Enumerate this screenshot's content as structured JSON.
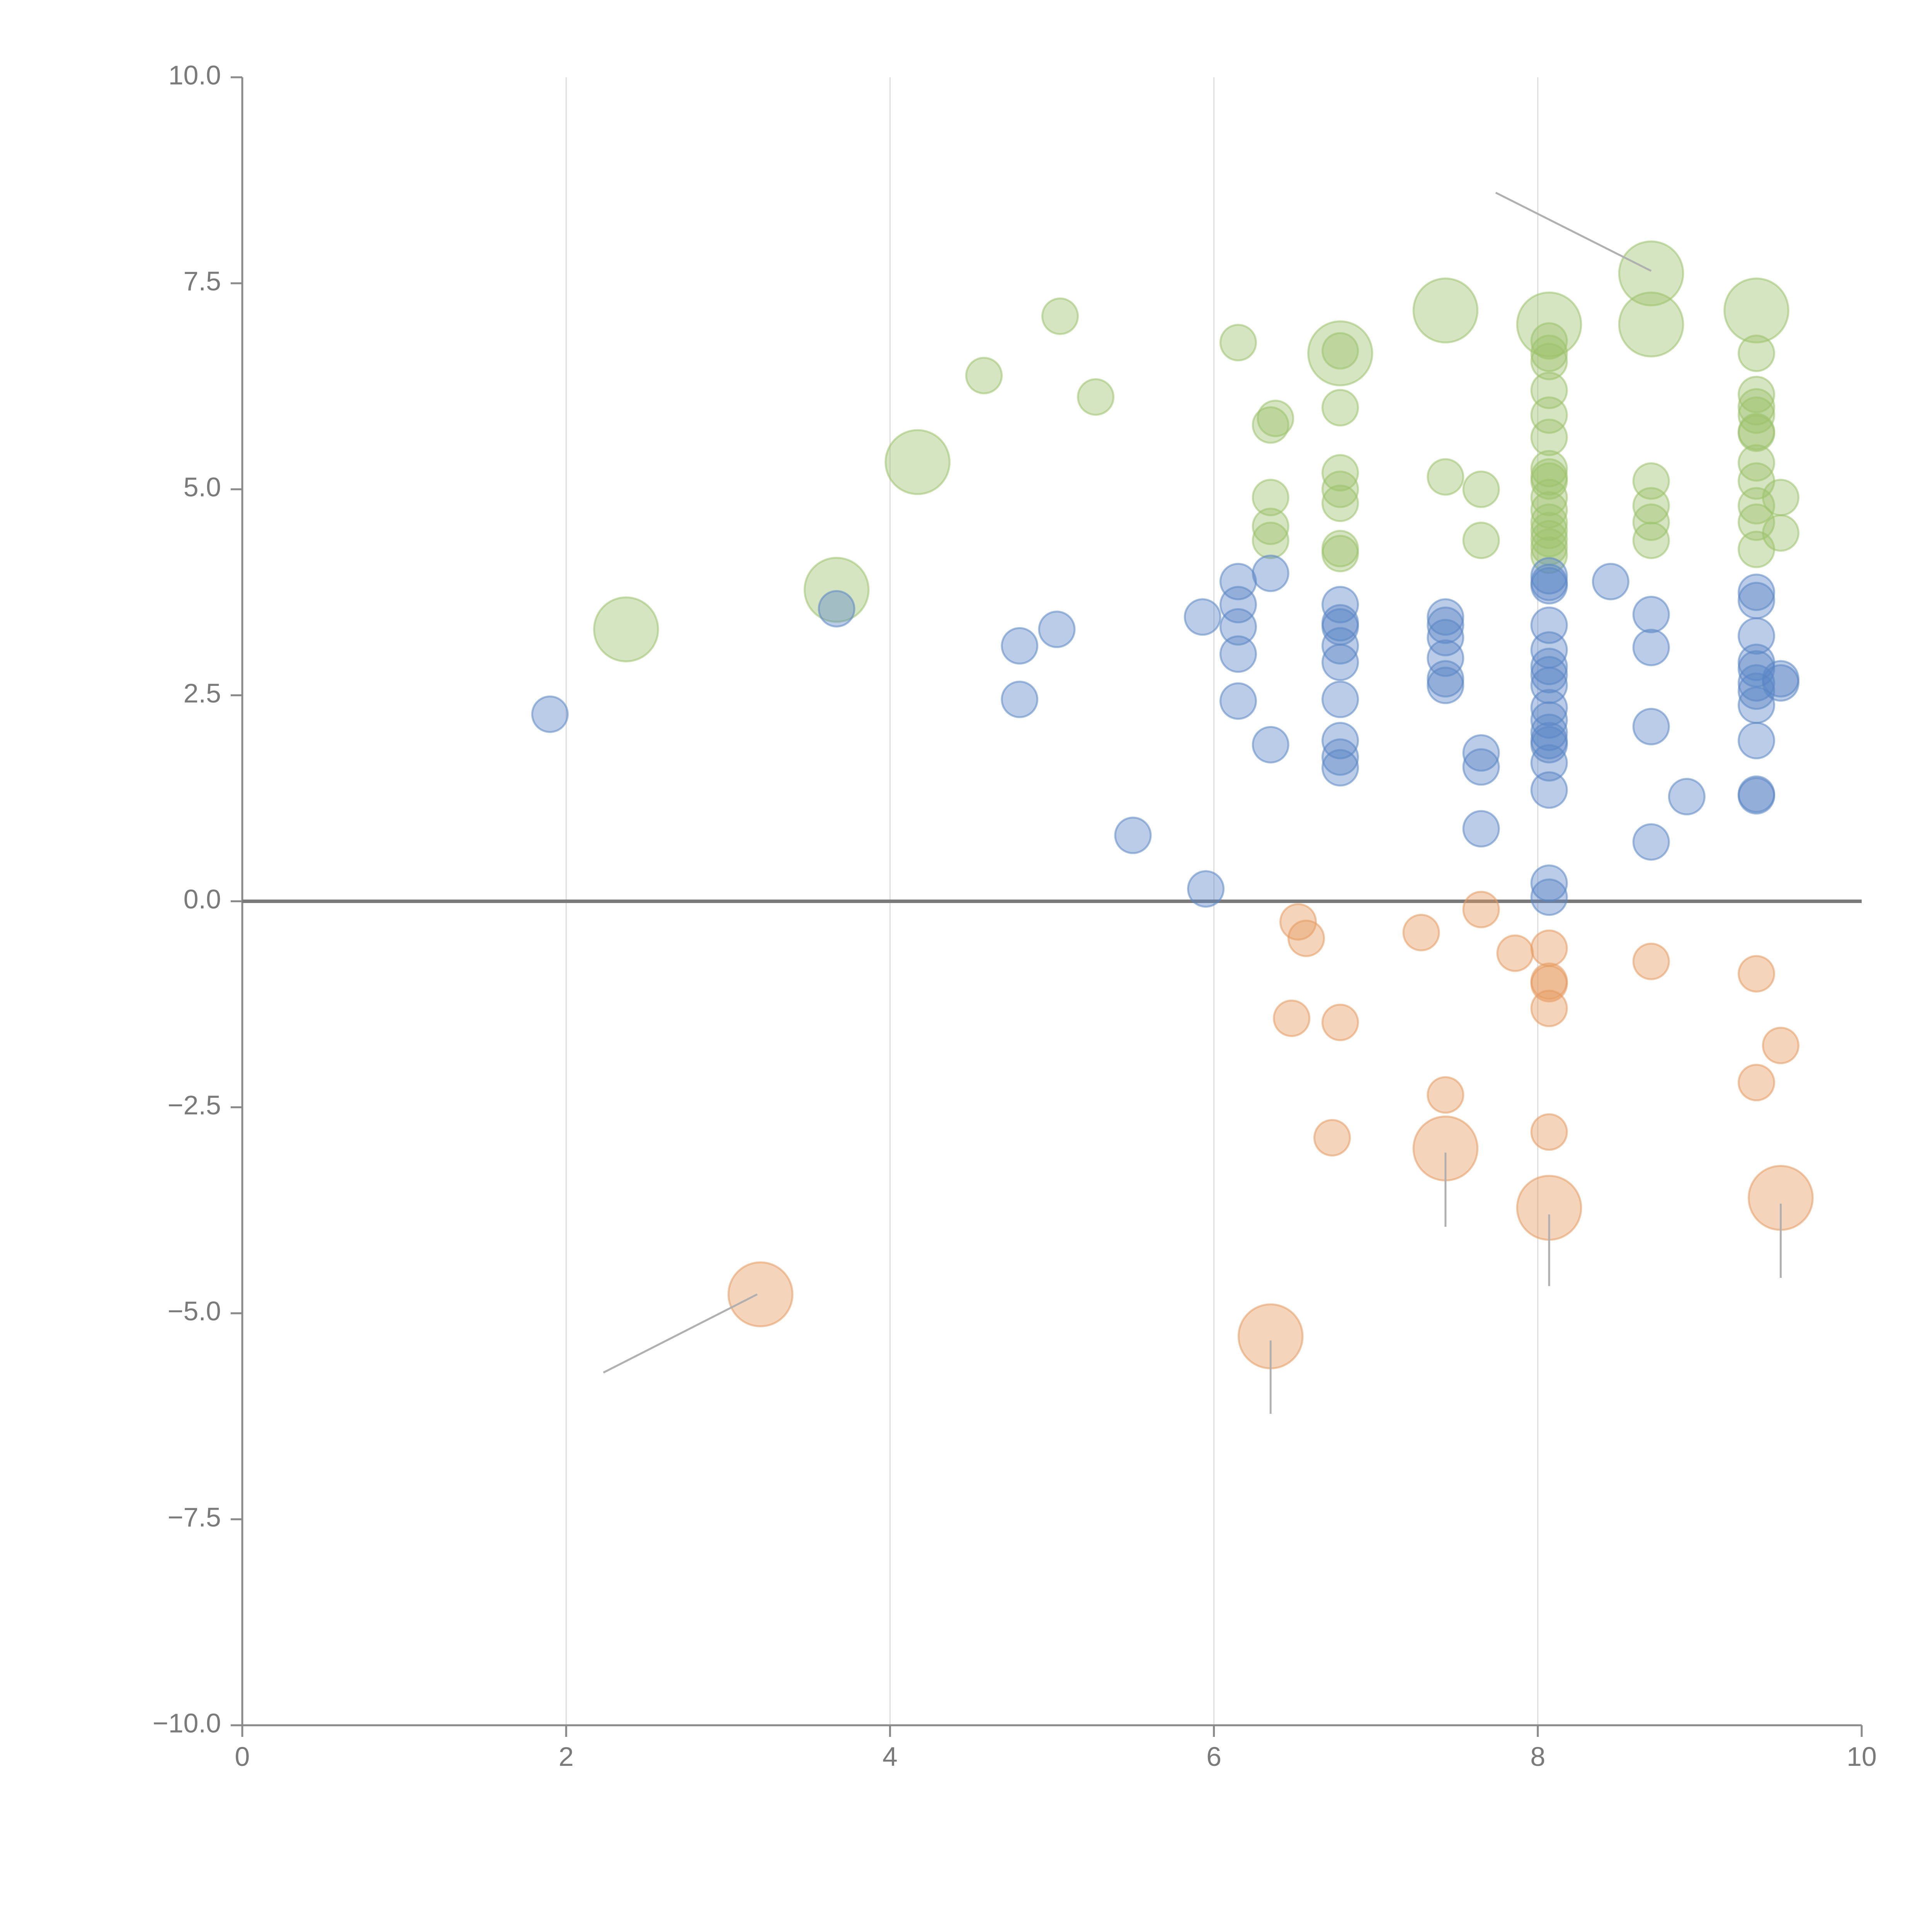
{
  "chart_data": {
    "type": "scatter",
    "title": "",
    "xlabel": "",
    "ylabel": "",
    "xlim": [
      0,
      10
    ],
    "ylim": [
      -10,
      10
    ],
    "grid": "vertical",
    "x_ticks": [
      "0",
      "2",
      "4",
      "6",
      "8",
      "10"
    ],
    "y_ticks": [
      "10.0",
      "7.5",
      "5.0",
      "2.5",
      "0.0",
      "−2.5",
      "−5.0",
      "−7.5",
      "−10.0"
    ],
    "x_tick_values": [
      0,
      2,
      4,
      6,
      8,
      10
    ],
    "y_tick_values": [
      10,
      7.5,
      5,
      2.5,
      0,
      -2.5,
      -5,
      -7.5,
      -10
    ],
    "series": [
      {
        "name": "green",
        "color": "#9dc26b",
        "points": [
          [
            2.37,
            3.3,
            1.8
          ],
          [
            3.67,
            3.78,
            1.8
          ],
          [
            4.17,
            5.33,
            1.8
          ],
          [
            4.58,
            6.38,
            1
          ],
          [
            5.05,
            7.1,
            1
          ],
          [
            5.27,
            6.12,
            1
          ],
          [
            6.15,
            6.78,
            1
          ],
          [
            6.35,
            5.78,
            1
          ],
          [
            6.38,
            5.86,
            1
          ],
          [
            6.35,
            4.9,
            1
          ],
          [
            6.35,
            4.55,
            1
          ],
          [
            6.35,
            4.38,
            1
          ],
          [
            6.78,
            6.65,
            1.8
          ],
          [
            6.78,
            6.68,
            1
          ],
          [
            6.78,
            5.99,
            1
          ],
          [
            6.78,
            5.2,
            1
          ],
          [
            6.78,
            5.0,
            1
          ],
          [
            6.78,
            4.83,
            1
          ],
          [
            6.78,
            4.28,
            1
          ],
          [
            6.78,
            4.22,
            1
          ],
          [
            7.43,
            7.17,
            1.8
          ],
          [
            7.43,
            5.15,
            1
          ],
          [
            7.65,
            5.0,
            1
          ],
          [
            7.65,
            4.38,
            1
          ],
          [
            8.07,
            7.0,
            1.8
          ],
          [
            8.07,
            6.8,
            1
          ],
          [
            8.07,
            6.65,
            1
          ],
          [
            8.07,
            6.55,
            1
          ],
          [
            8.07,
            6.2,
            1
          ],
          [
            8.07,
            5.9,
            1
          ],
          [
            8.07,
            5.63,
            1
          ],
          [
            8.07,
            5.25,
            1
          ],
          [
            8.07,
            5.15,
            1
          ],
          [
            8.07,
            5.1,
            1
          ],
          [
            8.07,
            4.9,
            1
          ],
          [
            8.07,
            4.75,
            1
          ],
          [
            8.07,
            4.6,
            1
          ],
          [
            8.07,
            4.5,
            1
          ],
          [
            8.07,
            4.4,
            1
          ],
          [
            8.07,
            4.3,
            1
          ],
          [
            8.07,
            4.2,
            1
          ],
          [
            8.7,
            7.62,
            1.8
          ],
          [
            8.7,
            7.0,
            1.8
          ],
          [
            8.7,
            5.1,
            1
          ],
          [
            8.7,
            4.8,
            1
          ],
          [
            8.7,
            4.6,
            1
          ],
          [
            8.7,
            4.38,
            1
          ],
          [
            9.35,
            7.17,
            1.8
          ],
          [
            9.35,
            6.65,
            1
          ],
          [
            9.35,
            6.15,
            1
          ],
          [
            9.35,
            6.0,
            1
          ],
          [
            9.35,
            5.9,
            1
          ],
          [
            9.35,
            5.7,
            1
          ],
          [
            9.35,
            5.68,
            1
          ],
          [
            9.35,
            5.32,
            1
          ],
          [
            9.35,
            5.1,
            1
          ],
          [
            9.35,
            4.8,
            1
          ],
          [
            9.35,
            4.6,
            1
          ],
          [
            9.35,
            4.27,
            1
          ],
          [
            9.5,
            4.9,
            1
          ],
          [
            9.5,
            4.47,
            1
          ]
        ]
      },
      {
        "name": "blue",
        "color": "#5b86c5",
        "points": [
          [
            1.9,
            2.27,
            1
          ],
          [
            3.67,
            3.55,
            1
          ],
          [
            4.8,
            3.1,
            1
          ],
          [
            4.8,
            2.45,
            1
          ],
          [
            5.03,
            3.3,
            1
          ],
          [
            5.5,
            0.8,
            1
          ],
          [
            5.93,
            3.45,
            1
          ],
          [
            5.95,
            0.15,
            1
          ],
          [
            6.15,
            3.88,
            1
          ],
          [
            6.15,
            3.6,
            1
          ],
          [
            6.15,
            3.33,
            1
          ],
          [
            6.15,
            3.0,
            1
          ],
          [
            6.15,
            2.43,
            1
          ],
          [
            6.35,
            3.98,
            1
          ],
          [
            6.35,
            1.9,
            1
          ],
          [
            6.78,
            3.6,
            1
          ],
          [
            6.78,
            3.38,
            1
          ],
          [
            6.78,
            3.33,
            1
          ],
          [
            6.78,
            3.1,
            1
          ],
          [
            6.78,
            2.9,
            1
          ],
          [
            6.78,
            2.45,
            1
          ],
          [
            6.78,
            1.95,
            1
          ],
          [
            6.78,
            1.75,
            1
          ],
          [
            6.78,
            1.62,
            1
          ],
          [
            7.43,
            3.45,
            1
          ],
          [
            7.43,
            3.35,
            1
          ],
          [
            7.43,
            3.2,
            1
          ],
          [
            7.43,
            2.95,
            1
          ],
          [
            7.43,
            2.7,
            1
          ],
          [
            7.43,
            2.62,
            1
          ],
          [
            7.65,
            1.8,
            1
          ],
          [
            7.65,
            1.63,
            1
          ],
          [
            7.65,
            0.88,
            1
          ],
          [
            8.07,
            3.95,
            1
          ],
          [
            8.07,
            3.87,
            1
          ],
          [
            8.07,
            3.83,
            1
          ],
          [
            8.07,
            3.35,
            1
          ],
          [
            8.07,
            3.05,
            1
          ],
          [
            8.07,
            2.85,
            1
          ],
          [
            8.07,
            2.75,
            1
          ],
          [
            8.07,
            2.62,
            1
          ],
          [
            8.07,
            2.35,
            1
          ],
          [
            8.07,
            2.2,
            1
          ],
          [
            8.07,
            2.05,
            1
          ],
          [
            8.07,
            1.95,
            1
          ],
          [
            8.07,
            1.9,
            1
          ],
          [
            8.07,
            1.68,
            1
          ],
          [
            8.07,
            1.35,
            1
          ],
          [
            8.07,
            0.22,
            1
          ],
          [
            8.07,
            0.05,
            1
          ],
          [
            8.45,
            3.88,
            1
          ],
          [
            8.7,
            3.48,
            1
          ],
          [
            8.7,
            3.08,
            1
          ],
          [
            8.7,
            2.12,
            1
          ],
          [
            8.7,
            0.72,
            1
          ],
          [
            8.92,
            1.27,
            1
          ],
          [
            9.35,
            3.75,
            1
          ],
          [
            9.35,
            3.65,
            1
          ],
          [
            9.35,
            3.22,
            1
          ],
          [
            9.35,
            2.9,
            1
          ],
          [
            9.35,
            2.82,
            1
          ],
          [
            9.35,
            2.65,
            1
          ],
          [
            9.35,
            2.55,
            1
          ],
          [
            9.35,
            2.38,
            1
          ],
          [
            9.35,
            1.95,
            1
          ],
          [
            9.35,
            1.3,
            1
          ],
          [
            9.35,
            1.28,
            1
          ],
          [
            9.5,
            2.7,
            1
          ],
          [
            9.5,
            2.65,
            1
          ]
        ]
      },
      {
        "name": "orange",
        "color": "#e59a5f",
        "points": [
          [
            3.2,
            -4.77,
            1.8
          ],
          [
            6.35,
            -5.28,
            1.8
          ],
          [
            6.48,
            -1.42,
            1
          ],
          [
            6.52,
            -0.25,
            1
          ],
          [
            6.57,
            -0.45,
            1
          ],
          [
            6.73,
            -2.87,
            1
          ],
          [
            6.78,
            -1.47,
            1
          ],
          [
            7.28,
            -0.38,
            1
          ],
          [
            7.43,
            -2.35,
            1
          ],
          [
            7.43,
            -3.0,
            1.8
          ],
          [
            7.65,
            -0.1,
            1
          ],
          [
            7.86,
            -0.63,
            1
          ],
          [
            8.07,
            -0.57,
            1
          ],
          [
            8.07,
            -0.97,
            1
          ],
          [
            8.07,
            -1.0,
            1
          ],
          [
            8.07,
            -1.3,
            1
          ],
          [
            8.07,
            -2.8,
            1
          ],
          [
            8.07,
            -3.72,
            1.8
          ],
          [
            8.7,
            -0.73,
            1
          ],
          [
            9.35,
            -0.88,
            1
          ],
          [
            9.35,
            -2.2,
            1
          ],
          [
            9.5,
            -1.75,
            1
          ],
          [
            9.5,
            -3.6,
            1.8
          ]
        ]
      }
    ],
    "leader_lines": [
      {
        "from": [
          2.23,
          -5.72
        ],
        "to": [
          3.18,
          -4.77
        ]
      },
      {
        "from": [
          6.35,
          -6.22
        ],
        "to": [
          6.35,
          -5.33
        ]
      },
      {
        "from": [
          7.43,
          -3.95
        ],
        "to": [
          7.43,
          -3.05
        ]
      },
      {
        "from": [
          8.07,
          -4.67
        ],
        "to": [
          8.07,
          -3.8
        ]
      },
      {
        "from": [
          9.5,
          -4.57
        ],
        "to": [
          9.5,
          -3.67
        ]
      },
      {
        "from": [
          7.74,
          8.6
        ],
        "to": [
          8.7,
          7.65
        ]
      }
    ]
  }
}
